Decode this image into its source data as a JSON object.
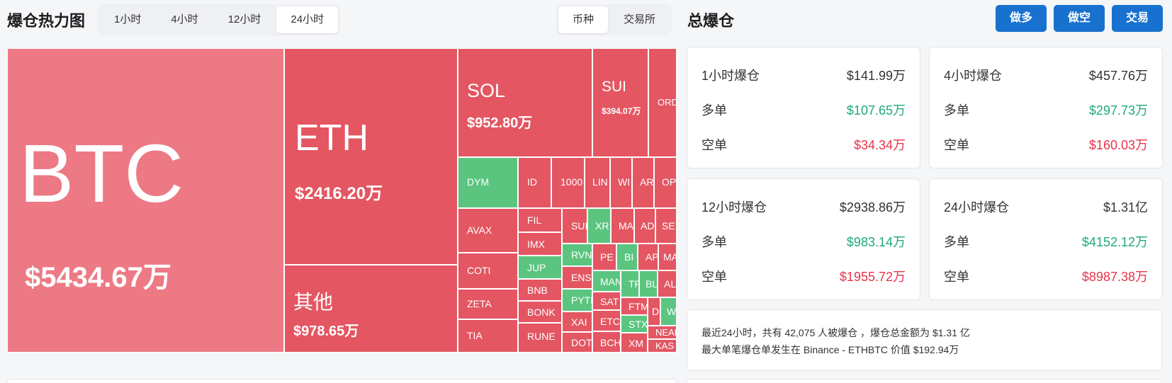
{
  "heatmap": {
    "title": "爆仓热力图",
    "time_tabs": [
      {
        "label": "1小时"
      },
      {
        "label": "4小时"
      },
      {
        "label": "12小时"
      },
      {
        "label": "24小时"
      }
    ],
    "active_time_tab": "24小时",
    "view_tabs": [
      {
        "label": "币种"
      },
      {
        "label": "交易所"
      }
    ],
    "active_view_tab": "币种",
    "cells": {
      "btc": {
        "name": "BTC",
        "value": "$5434.67万"
      },
      "eth": {
        "name": "ETH",
        "value": "$2416.20万"
      },
      "other": {
        "name": "其他",
        "value": "$978.65万"
      },
      "sol": {
        "name": "SOL",
        "value": "$952.80万"
      },
      "sui": {
        "name": "SUI",
        "value": "$394.07万"
      },
      "ord": {
        "name": "ORD"
      },
      "dym": {
        "name": "DYM"
      },
      "id": {
        "name": "ID"
      },
      "k1000": {
        "name": "1000"
      },
      "lin": {
        "name": "LIN"
      },
      "wi": {
        "name": "WI"
      },
      "ar": {
        "name": "AR"
      },
      "op": {
        "name": "OP"
      },
      "avax": {
        "name": "AVAX"
      },
      "fil": {
        "name": "FIL"
      },
      "sup": {
        "name": "SUI"
      },
      "xr": {
        "name": "XR"
      },
      "ma": {
        "name": "MA"
      },
      "ad": {
        "name": "AD"
      },
      "se": {
        "name": "SE"
      },
      "imx": {
        "name": "IMX"
      },
      "coti": {
        "name": "COTI"
      },
      "jup": {
        "name": "JUP"
      },
      "rvn": {
        "name": "RVN"
      },
      "pe": {
        "name": "PE"
      },
      "bi": {
        "name": "BI"
      },
      "ap": {
        "name": "AP"
      },
      "ma2": {
        "name": "MA"
      },
      "bnb": {
        "name": "BNB"
      },
      "ens": {
        "name": "ENS"
      },
      "man": {
        "name": "MAN"
      },
      "tr": {
        "name": "TR"
      },
      "bl": {
        "name": "BL"
      },
      "al": {
        "name": "AL"
      },
      "zeta": {
        "name": "ZETA"
      },
      "bonk": {
        "name": "BONK"
      },
      "pyth": {
        "name": "PYTH"
      },
      "sat": {
        "name": "SAT"
      },
      "ftm": {
        "name": "FTM"
      },
      "d": {
        "name": "D"
      },
      "w": {
        "name": "W"
      },
      "tia": {
        "name": "TIA"
      },
      "xai": {
        "name": "XAI"
      },
      "etc": {
        "name": "ETC"
      },
      "stx": {
        "name": "STX"
      },
      "near": {
        "name": "NEAR"
      },
      "rune": {
        "name": "RUNE"
      },
      "dot": {
        "name": "DOT"
      },
      "bch": {
        "name": "BCH"
      },
      "xm": {
        "name": "XM"
      },
      "kas": {
        "name": "KAS"
      }
    }
  },
  "total": {
    "title": "总爆仓",
    "buttons": {
      "long": "做多",
      "short": "做空",
      "trade": "交易"
    },
    "colors": {
      "green": "#1eaa7a",
      "red": "#e8334a",
      "accent": "#1971cf"
    },
    "cards": [
      {
        "title": "1小时爆仓",
        "total": "$141.99万",
        "long_label": "多单",
        "long": "$107.65万",
        "short_label": "空单",
        "short": "$34.34万"
      },
      {
        "title": "4小时爆仓",
        "total": "$457.76万",
        "long_label": "多单",
        "long": "$297.73万",
        "short_label": "空单",
        "short": "$160.03万"
      },
      {
        "title": "12小时爆仓",
        "total": "$2938.86万",
        "long_label": "多单",
        "long": "$983.14万",
        "short_label": "空单",
        "short": "$1955.72万"
      },
      {
        "title": "24小时爆仓",
        "total": "$1.31亿",
        "long_label": "多单",
        "long": "$4152.12万",
        "short_label": "空单",
        "short": "$8987.38万"
      }
    ],
    "summary_line1": "最近24小时，共有 42,075 人被爆仓 ，爆仓总金额为 $1.31 亿",
    "summary_line2": "最大单笔爆仓单发生在 Binance - ETHBTC 价值 $192.94万"
  }
}
